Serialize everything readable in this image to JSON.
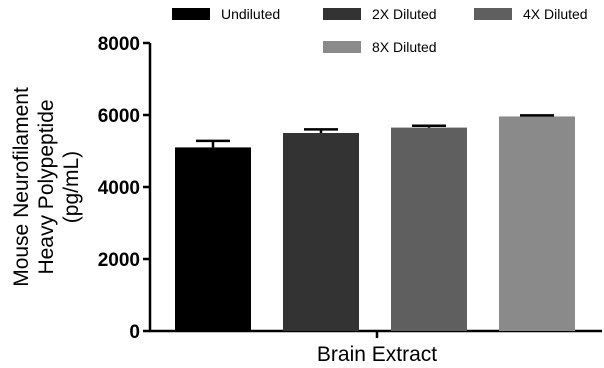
{
  "chart_data": {
    "type": "bar",
    "categories": [
      "Brain Extract"
    ],
    "xlabel": "Brain Extract",
    "ylabel_lines": [
      "Mouse Neurofilament",
      "Heavy Polypeptide",
      "(pg/mL)"
    ],
    "ylim": [
      0,
      8000
    ],
    "yticks": [
      0,
      2000,
      4000,
      6000,
      8000
    ],
    "legend_position": "top",
    "series": [
      {
        "name": "Undiluted",
        "value": 5100,
        "error": 180,
        "color": "#000000"
      },
      {
        "name": "2X Diluted",
        "value": 5500,
        "error": 100,
        "color": "#333333"
      },
      {
        "name": "4X Diluted",
        "value": 5650,
        "error": 50,
        "color": "#5f5f5f"
      },
      {
        "name": "8X Diluted",
        "value": 5960,
        "error": 30,
        "color": "#8a8a8a"
      }
    ]
  }
}
